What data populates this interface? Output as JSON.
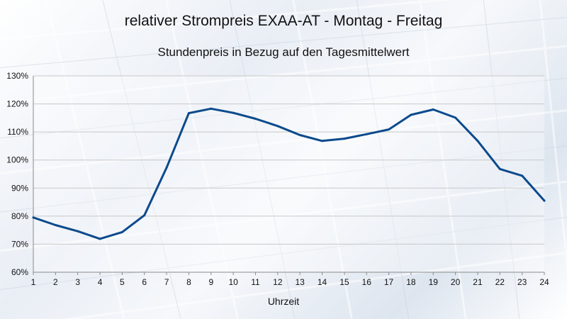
{
  "title": "relativer Strompreis EXAA-AT - Montag - Freitag",
  "subtitle": "Stundenpreis in Bezug auf den Tagesmittelwert",
  "colors": {
    "line": "#0b4a8c",
    "grid": "#c8c8c8"
  },
  "chart_data": {
    "type": "line",
    "title": "relativer Strompreis EXAA-AT - Montag - Freitag",
    "subtitle": "Stundenpreis in Bezug auf den Tagesmittelwert",
    "xlabel": "Uhrzeit",
    "ylabel": "",
    "x": [
      1,
      2,
      3,
      4,
      5,
      6,
      7,
      8,
      9,
      10,
      11,
      12,
      13,
      14,
      15,
      16,
      17,
      18,
      19,
      20,
      21,
      22,
      23,
      24
    ],
    "series": [
      {
        "values": [
          79.5,
          76.8,
          74.6,
          71.9,
          74.3,
          80.3,
          97.3,
          116.7,
          118.3,
          116.8,
          114.7,
          112.1,
          108.9,
          106.8,
          107.6,
          109.2,
          110.9,
          116.1,
          118.0,
          115.1,
          106.8,
          96.8,
          94.4,
          85.5
        ]
      }
    ],
    "ylim": [
      60,
      130
    ],
    "yticks": [
      60,
      70,
      80,
      90,
      100,
      110,
      120,
      130
    ],
    "ytick_labels": [
      "60%",
      "70%",
      "80%",
      "90%",
      "100%",
      "110%",
      "120%",
      "130%"
    ],
    "xtick_labels": [
      "1",
      "2",
      "3",
      "4",
      "5",
      "6",
      "7",
      "8",
      "9",
      "10",
      "11",
      "12",
      "13",
      "14",
      "15",
      "16",
      "17",
      "18",
      "19",
      "20",
      "21",
      "22",
      "23",
      "24"
    ],
    "grid": true,
    "legend": "none"
  }
}
